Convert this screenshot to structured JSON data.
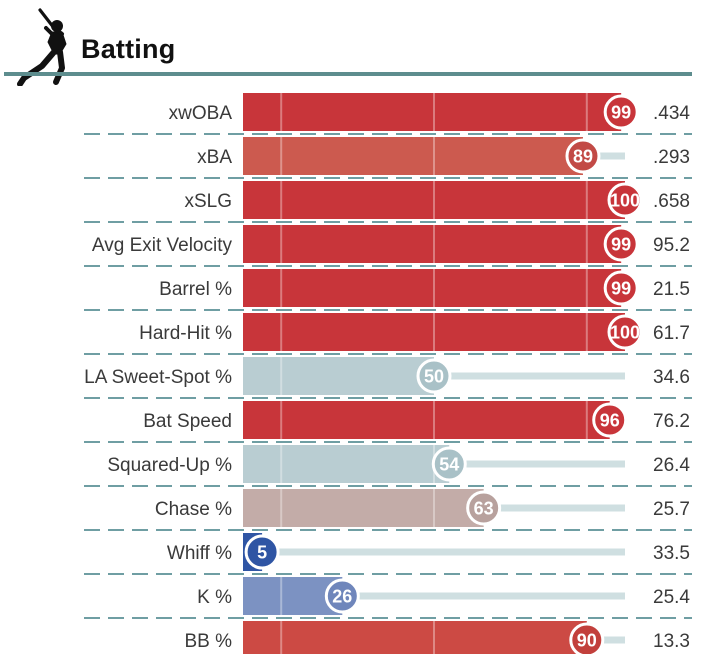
{
  "header": {
    "title": "Batting",
    "icon": "baseball-batter-icon"
  },
  "colors": {
    "title_rule": "#5d8d8e",
    "divider": "#6f9ea3",
    "track": "#cfdfe1",
    "hot": "#c8353a",
    "cold": "#2f55a4"
  },
  "chart_data": {
    "type": "bar",
    "orientation": "horizontal",
    "title": "Batting",
    "x_range": [
      0,
      100
    ],
    "categories": [
      "xwOBA",
      "xBA",
      "xSLG",
      "Avg Exit Velocity",
      "Barrel %",
      "Hard-Hit %",
      "LA Sweet-Spot %",
      "Bat Speed",
      "Squared-Up %",
      "Chase %",
      "Whiff %",
      "K %",
      "BB %"
    ],
    "percentiles": [
      99,
      89,
      100,
      99,
      99,
      100,
      50,
      96,
      54,
      63,
      5,
      26,
      90
    ],
    "stat_values": [
      ".434",
      ".293",
      ".658",
      "95.2",
      "21.5",
      "61.7",
      "34.6",
      "76.2",
      "26.4",
      "25.7",
      "33.5",
      "25.4",
      "13.3"
    ],
    "bar_colors": [
      "#c8353a",
      "#cc5a4f",
      "#c8353a",
      "#c8353a",
      "#c8353a",
      "#c8353a",
      "#b9cdd2",
      "#c8353a",
      "#b9cdd2",
      "#c3aca8",
      "#2f55a4",
      "#7c92c2",
      "#cc4a44"
    ],
    "badge_colors": [
      "#c8353a",
      "#c24a46",
      "#c8353a",
      "#c8353a",
      "#c8353a",
      "#c8353a",
      "#a9c1c7",
      "#c8353a",
      "#a9c1c7",
      "#b8a19d",
      "#2f55a4",
      "#6f86bb",
      "#c2403c"
    ],
    "gridlines": [
      10,
      50,
      90
    ],
    "grid": true,
    "legend": "none"
  }
}
